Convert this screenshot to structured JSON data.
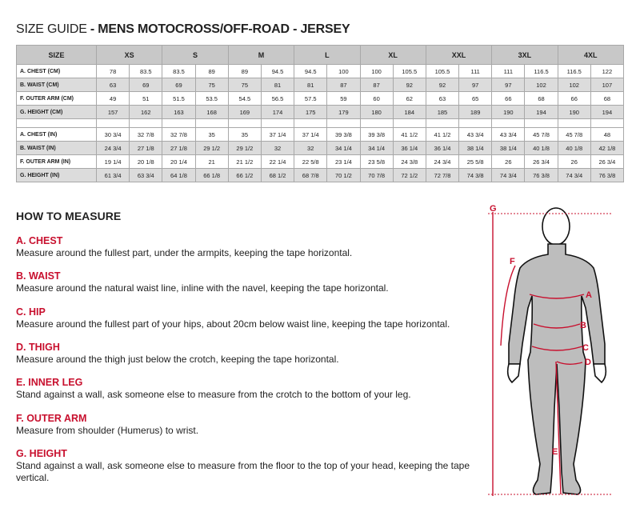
{
  "title": {
    "prefix": "SIZE GUIDE",
    "suffix": " - MENS MOTOCROSS/OFF-ROAD - JERSEY"
  },
  "table": {
    "header": "SIZE",
    "sizes": [
      "XS",
      "S",
      "M",
      "L",
      "XL",
      "XXL",
      "3XL",
      "4XL"
    ],
    "cm_rows": [
      {
        "label": "A. CHEST (CM)",
        "values": [
          "78",
          "83.5",
          "83.5",
          "89",
          "89",
          "94.5",
          "94.5",
          "100",
          "100",
          "105.5",
          "105.5",
          "111",
          "111",
          "116.5",
          "116.5",
          "122"
        ]
      },
      {
        "label": "B. WAIST (CM)",
        "values": [
          "63",
          "69",
          "69",
          "75",
          "75",
          "81",
          "81",
          "87",
          "87",
          "92",
          "92",
          "97",
          "97",
          "102",
          "102",
          "107"
        ]
      },
      {
        "label": "F. OUTER ARM (CM)",
        "values": [
          "49",
          "51",
          "51.5",
          "53.5",
          "54.5",
          "56.5",
          "57.5",
          "59",
          "60",
          "62",
          "63",
          "65",
          "66",
          "68",
          "66",
          "68"
        ]
      },
      {
        "label": "G. HEIGHT (CM)",
        "values": [
          "157",
          "162",
          "163",
          "168",
          "169",
          "174",
          "175",
          "179",
          "180",
          "184",
          "185",
          "189",
          "190",
          "194",
          "190",
          "194"
        ]
      }
    ],
    "in_rows": [
      {
        "label": "A. CHEST (IN)",
        "values": [
          "30 3/4",
          "32 7/8",
          "32 7/8",
          "35",
          "35",
          "37 1/4",
          "37 1/4",
          "39 3/8",
          "39 3/8",
          "41 1/2",
          "41 1/2",
          "43 3/4",
          "43 3/4",
          "45 7/8",
          "45 7/8",
          "48"
        ]
      },
      {
        "label": "B. WAIST (IN)",
        "values": [
          "24 3/4",
          "27 1/8",
          "27 1/8",
          "29 1/2",
          "29 1/2",
          "32",
          "32",
          "34 1/4",
          "34 1/4",
          "36 1/4",
          "36 1/4",
          "38 1/4",
          "38 1/4",
          "40 1/8",
          "40 1/8",
          "42 1/8"
        ]
      },
      {
        "label": "F. OUTER ARM (IN)",
        "values": [
          "19 1/4",
          "20 1/8",
          "20 1/4",
          "21",
          "21 1/2",
          "22 1/4",
          "22 5/8",
          "23 1/4",
          "23 5/8",
          "24 3/8",
          "24 3/4",
          "25 5/8",
          "26",
          "26 3/4",
          "26",
          "26 3/4"
        ]
      },
      {
        "label": "G. HEIGHT (IN)",
        "values": [
          "61 3/4",
          "63 3/4",
          "64 1/8",
          "66 1/8",
          "66 1/2",
          "68 1/2",
          "68 7/8",
          "70 1/2",
          "70 7/8",
          "72 1/2",
          "72 7/8",
          "74 3/8",
          "74 3/4",
          "76 3/8",
          "74 3/4",
          "76 3/8"
        ]
      }
    ]
  },
  "how_to_measure": {
    "heading": "HOW TO MEASURE",
    "sections": [
      {
        "title": "A. CHEST",
        "text": "Measure around the fullest part, under the armpits, keeping the tape horizontal."
      },
      {
        "title": "B. WAIST",
        "text": "Measure around the natural waist line, inline with the navel, keeping the tape horizontal."
      },
      {
        "title": "C. HIP",
        "text": "Measure around the fullest part of your hips, about 20cm below waist line, keeping the tape horizontal."
      },
      {
        "title": "D. THIGH",
        "text": "Measure around the thigh just below the crotch, keeping the tape horizontal."
      },
      {
        "title": "E. INNER LEG",
        "text": "Stand against a wall, ask someone else to measure from the crotch to the bottom of your leg."
      },
      {
        "title": "F. OUTER ARM",
        "text": "Measure from shoulder (Humerus) to wrist."
      },
      {
        "title": "G. HEIGHT",
        "text": "Stand against a wall, ask someone else to measure from the floor to the top of your head, keeping the tape vertical."
      }
    ]
  },
  "figure": {
    "labels": [
      "G",
      "F",
      "A",
      "B",
      "C",
      "D",
      "E"
    ],
    "accent": "#c8102e",
    "body_color": "#bdbdbd"
  }
}
